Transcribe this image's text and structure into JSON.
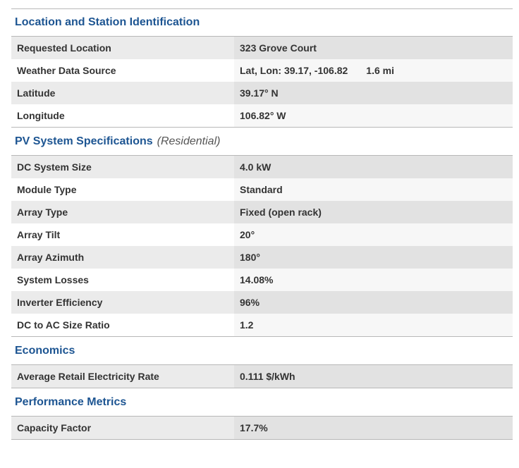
{
  "sections": [
    {
      "title": "Location and Station Identification",
      "subtitle": "",
      "rows": [
        {
          "label": "Requested Location",
          "value": "323 Grove Court"
        },
        {
          "label": "Weather Data Source",
          "value": "Lat, Lon: 39.17, -106.82",
          "extra": "1.6 mi"
        },
        {
          "label": "Latitude",
          "value": "39.17° N"
        },
        {
          "label": "Longitude",
          "value": "106.82° W"
        }
      ]
    },
    {
      "title": "PV System Specifications",
      "subtitle": "(Residential)",
      "rows": [
        {
          "label": "DC System Size",
          "value": "4.0 kW"
        },
        {
          "label": "Module Type",
          "value": "Standard"
        },
        {
          "label": "Array Type",
          "value": "Fixed (open rack)"
        },
        {
          "label": "Array Tilt",
          "value": "20°"
        },
        {
          "label": "Array Azimuth",
          "value": "180°"
        },
        {
          "label": "System Losses",
          "value": "14.08%"
        },
        {
          "label": "Inverter Efficiency",
          "value": "96%"
        },
        {
          "label": "DC to AC Size Ratio",
          "value": "1.2"
        }
      ]
    },
    {
      "title": "Economics",
      "subtitle": "",
      "rows": [
        {
          "label": "Average Retail Electricity Rate",
          "value": "0.111 $/kWh"
        }
      ]
    },
    {
      "title": "Performance Metrics",
      "subtitle": "",
      "rows": [
        {
          "label": "Capacity Factor",
          "value": "17.7%"
        }
      ]
    }
  ]
}
